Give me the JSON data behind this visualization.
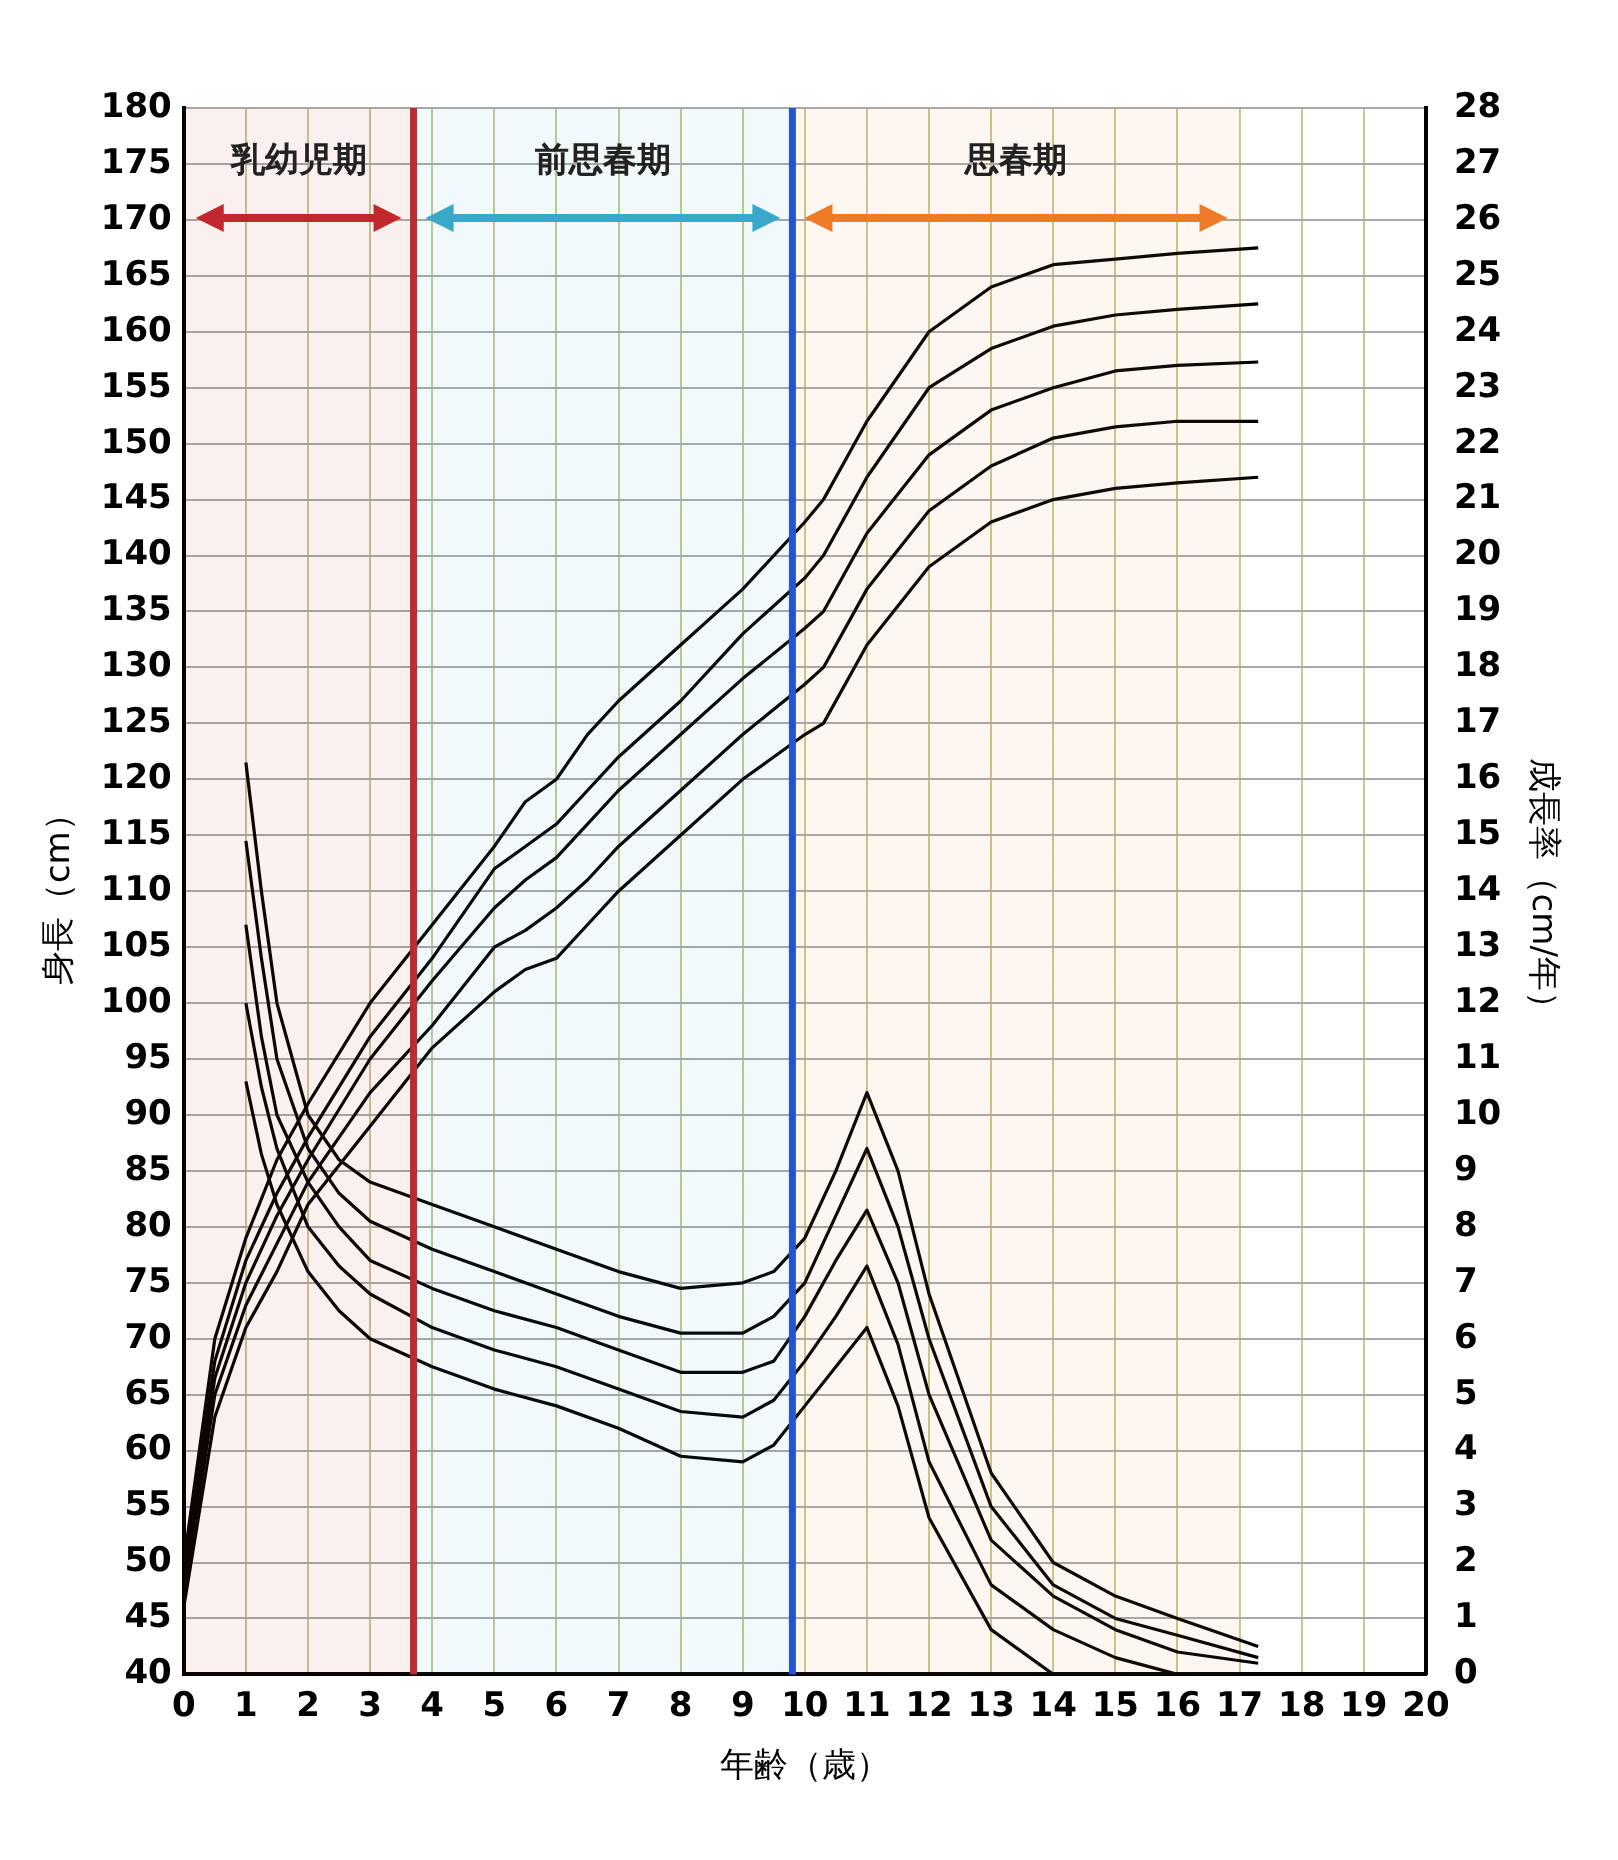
{
  "chart_data": {
    "type": "line",
    "xlabel": "年齢（歳）",
    "ylabel": "身長（cm）",
    "y2label": "成長率（cm/年）",
    "xlim": [
      0,
      20
    ],
    "xticks": [
      0,
      1,
      2,
      3,
      4,
      5,
      6,
      7,
      8,
      9,
      10,
      11,
      12,
      13,
      14,
      15,
      16,
      17,
      18,
      19,
      20
    ],
    "ylim": [
      40,
      180
    ],
    "yticks": [
      40,
      45,
      50,
      55,
      60,
      65,
      70,
      75,
      80,
      85,
      90,
      95,
      100,
      105,
      110,
      115,
      120,
      125,
      130,
      135,
      140,
      145,
      150,
      155,
      160,
      165,
      170,
      175,
      180
    ],
    "y2lim": [
      0,
      28
    ],
    "y2ticks": [
      0,
      1,
      2,
      3,
      4,
      5,
      6,
      7,
      8,
      9,
      10,
      11,
      12,
      13,
      14,
      15,
      16,
      17,
      18,
      19,
      20,
      21,
      22,
      23,
      24,
      25,
      26,
      27,
      28
    ],
    "grid": true,
    "legend": false,
    "marker": "none",
    "line_style": "solid",
    "ref_lines": [
      {
        "axis": "x",
        "value": 3.7,
        "color": "#c0282d"
      },
      {
        "axis": "x",
        "value": 9.8,
        "color": "#1f4fd6"
      }
    ],
    "bands": [
      {
        "axis": "x",
        "from": 0,
        "to": 3.7,
        "label": "乳幼児期",
        "color": "#c0282d"
      },
      {
        "axis": "x",
        "from": 3.7,
        "to": 9.8,
        "label": "前思春期",
        "color": "#3aa8c8"
      },
      {
        "axis": "x",
        "from": 9.8,
        "to": 17,
        "label": "思春期",
        "color": "#ef7a28"
      }
    ],
    "series": [
      {
        "color": "#000000",
        "x": [
          0,
          0.5,
          1,
          1.5,
          2,
          3,
          4,
          5,
          5.5,
          6,
          6.5,
          7,
          8,
          9,
          10,
          10.3,
          11,
          12,
          13,
          14,
          15,
          16,
          17.3
        ],
        "values": [
          50,
          70,
          79,
          86,
          91,
          100,
          107,
          114,
          118,
          120,
          124,
          127,
          132,
          137,
          143,
          145,
          152,
          160,
          164,
          166,
          166.5,
          167,
          167.5
        ]
      },
      {
        "color": "#000000",
        "x": [
          0,
          0.5,
          1,
          1.5,
          2,
          3,
          4,
          5,
          5.5,
          6,
          6.5,
          7,
          8,
          9,
          10,
          10.3,
          11,
          12,
          13,
          14,
          15,
          16,
          17.3
        ],
        "values": [
          49,
          68,
          77,
          83,
          88,
          97,
          104,
          112,
          114,
          116,
          119,
          122,
          127,
          133,
          138,
          140,
          147,
          155,
          158.5,
          160.5,
          161.5,
          162,
          162.5
        ]
      },
      {
        "color": "#000000",
        "x": [
          0,
          0.5,
          1,
          1.5,
          2,
          3,
          4,
          5,
          5.5,
          6,
          6.5,
          7,
          8,
          9,
          10,
          10.3,
          11,
          12,
          13,
          14,
          15,
          16,
          17.3
        ],
        "values": [
          48,
          66.5,
          75,
          81,
          86,
          95,
          102,
          108.5,
          111,
          113,
          116,
          119,
          124,
          129,
          133.5,
          135,
          142,
          149,
          153,
          155,
          156.5,
          157,
          157.3
        ]
      },
      {
        "color": "#000000",
        "x": [
          0,
          0.5,
          1,
          1.5,
          2,
          3,
          4,
          5,
          5.5,
          6,
          6.5,
          7,
          8,
          9,
          10,
          10.3,
          11,
          12,
          13,
          14,
          15,
          16,
          17.3
        ],
        "values": [
          47,
          65,
          73,
          78.5,
          84,
          92,
          98,
          105,
          106.5,
          108.5,
          111,
          114,
          119,
          124,
          128.5,
          130,
          137,
          144,
          148,
          150.5,
          151.5,
          152,
          152
        ]
      },
      {
        "color": "#000000",
        "x": [
          0,
          0.5,
          1,
          1.5,
          2,
          3,
          4,
          5,
          5.5,
          6,
          6.5,
          7,
          8,
          9,
          10,
          10.3,
          11,
          12,
          13,
          14,
          15,
          16,
          17.3
        ],
        "values": [
          46,
          63,
          71,
          76,
          82,
          89,
          96,
          101,
          103,
          104,
          107,
          110,
          115,
          120,
          124,
          125,
          132,
          139,
          143,
          145,
          146,
          146.5,
          147
        ]
      },
      {
        "color": "#000000",
        "axis": "y2",
        "x": [
          1,
          1.25,
          1.5,
          2,
          2.5,
          3,
          4,
          5,
          6,
          7,
          8,
          9,
          9.5,
          10,
          10.5,
          11,
          11.5,
          12,
          13,
          14,
          15,
          16,
          17.3
        ],
        "values": [
          16.3,
          14,
          12,
          10,
          9.2,
          8.8,
          8.4,
          8,
          7.6,
          7.2,
          6.9,
          7,
          7.2,
          7.8,
          9,
          10.4,
          9,
          6.8,
          3.6,
          2,
          1.4,
          1,
          0.5
        ]
      },
      {
        "color": "#000000",
        "axis": "y2",
        "x": [
          1,
          1.25,
          1.5,
          2,
          2.5,
          3,
          4,
          5,
          6,
          7,
          8,
          9,
          9.5,
          10,
          10.5,
          11,
          11.5,
          12,
          13,
          14,
          15,
          16,
          17.3
        ],
        "values": [
          14.9,
          12.8,
          11,
          9.4,
          8.6,
          8.1,
          7.6,
          7.2,
          6.8,
          6.4,
          6.1,
          6.1,
          6.4,
          7,
          8.2,
          9.4,
          8,
          6,
          3,
          1.6,
          1,
          0.7,
          0.3
        ]
      },
      {
        "color": "#000000",
        "axis": "y2",
        "x": [
          1,
          1.25,
          1.5,
          2,
          2.5,
          3,
          4,
          5,
          6,
          7,
          8,
          9,
          9.5,
          10,
          10.5,
          11,
          11.5,
          12,
          13,
          14,
          15,
          16,
          17.3
        ],
        "values": [
          13.4,
          11.4,
          10,
          8.8,
          8,
          7.4,
          6.9,
          6.5,
          6.2,
          5.8,
          5.4,
          5.4,
          5.6,
          6.4,
          7.4,
          8.3,
          7,
          5,
          2.4,
          1.4,
          0.8,
          0.4,
          0.2
        ]
      },
      {
        "color": "#000000",
        "axis": "y2",
        "x": [
          1,
          1.25,
          1.5,
          2,
          2.5,
          3,
          4,
          5,
          6,
          7,
          8,
          9,
          9.5,
          10,
          10.5,
          11,
          11.5,
          12,
          13,
          14,
          15,
          16
        ],
        "values": [
          12,
          10.5,
          9.4,
          8,
          7.3,
          6.8,
          6.2,
          5.8,
          5.5,
          5.1,
          4.7,
          4.6,
          4.9,
          5.6,
          6.4,
          7.3,
          5.9,
          3.8,
          1.6,
          0.8,
          0.3,
          0
        ]
      },
      {
        "color": "#000000",
        "axis": "y2",
        "x": [
          1,
          1.25,
          1.5,
          2,
          2.5,
          3,
          4,
          5,
          6,
          7,
          8,
          9,
          9.5,
          10,
          10.5,
          11,
          11.5,
          12,
          13,
          14
        ],
        "values": [
          10.6,
          9.3,
          8.4,
          7.2,
          6.5,
          6,
          5.5,
          5.1,
          4.8,
          4.4,
          3.9,
          3.8,
          4.1,
          4.8,
          5.5,
          6.2,
          4.8,
          2.8,
          0.8,
          0
        ]
      }
    ]
  }
}
